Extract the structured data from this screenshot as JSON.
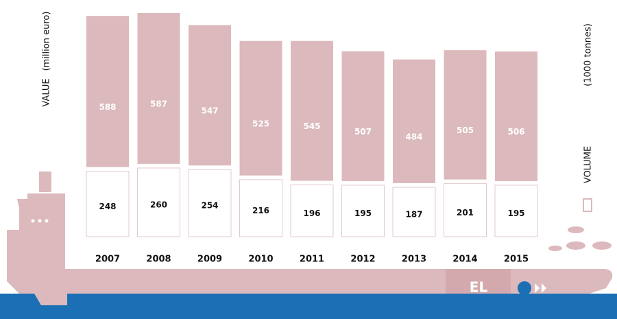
{
  "chart_data": {
    "type": "stacked-ship",
    "categories": [
      "2007",
      "2008",
      "2009",
      "2010",
      "2011",
      "2012",
      "2013",
      "2014",
      "2015"
    ],
    "series": [
      {
        "name": "VOLUME",
        "unit": "(1000 tonnes)",
        "color": "#ffffff",
        "values": [
          248,
          260,
          254,
          216,
          196,
          195,
          187,
          201,
          195
        ]
      },
      {
        "name": "VALUE",
        "unit": "(million euro)",
        "color": "#dcb9bc",
        "values": [
          588,
          587,
          547,
          525,
          545,
          507,
          484,
          505,
          506
        ]
      }
    ],
    "annotation": "EL"
  }
}
